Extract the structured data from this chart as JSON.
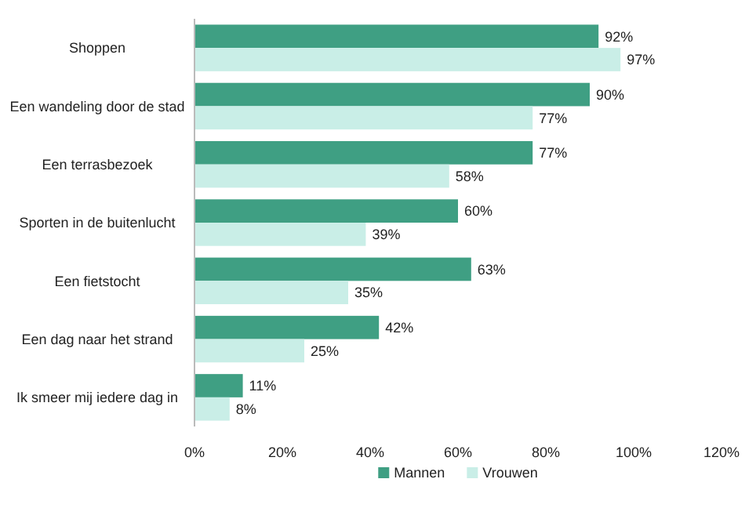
{
  "chart_data": {
    "type": "bar",
    "orientation": "horizontal",
    "categories": [
      "Shoppen",
      "Een wandeling door de stad",
      "Een terrasbezoek",
      "Sporten in de buitenlucht",
      "Een fietstocht",
      "Een dag naar het strand",
      "Ik smeer mij iedere dag in"
    ],
    "series": [
      {
        "name": "Mannen",
        "color": "#3f9f83",
        "values": [
          92,
          90,
          77,
          60,
          63,
          42,
          11
        ],
        "value_labels": [
          "92%",
          "90%",
          "77%",
          "60%",
          "63%",
          "42%",
          "11%"
        ]
      },
      {
        "name": "Vrouwen",
        "color": "#c9eee7",
        "values": [
          97,
          77,
          58,
          39,
          35,
          25,
          8
        ],
        "value_labels": [
          "97%",
          "77%",
          "58%",
          "39%",
          "35%",
          "25%",
          "8%"
        ]
      }
    ],
    "xlim": [
      0,
      120
    ],
    "xticks": [
      {
        "value": 0,
        "label": "0%"
      },
      {
        "value": 20,
        "label": "20%"
      },
      {
        "value": 40,
        "label": "40%"
      },
      {
        "value": 60,
        "label": "60%"
      },
      {
        "value": 80,
        "label": "80%"
      },
      {
        "value": 100,
        "label": "100%"
      },
      {
        "value": 120,
        "label": "120%"
      }
    ],
    "legend": "bottom"
  }
}
